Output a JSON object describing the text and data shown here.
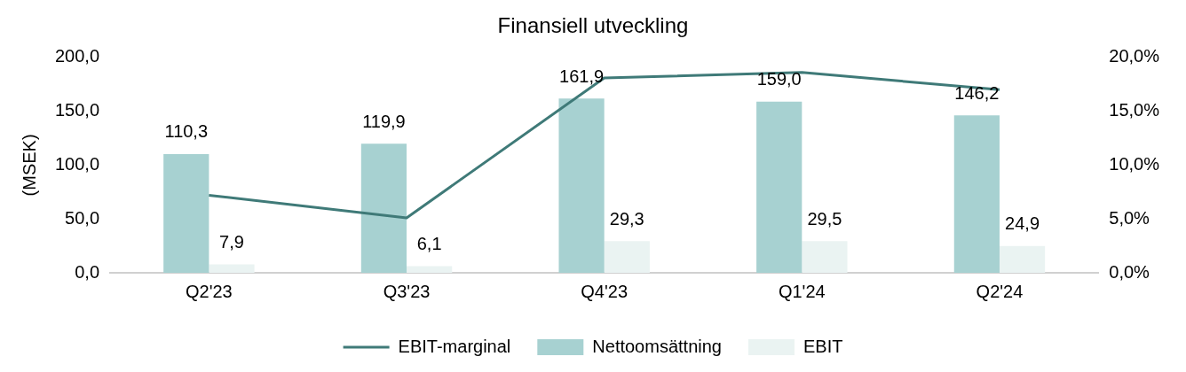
{
  "chart_data": {
    "type": "bar",
    "title": "Finansiell utveckling",
    "ylabel": "(MSEK)",
    "categories": [
      "Q2'23",
      "Q3'23",
      "Q4'23",
      "Q1'24",
      "Q2'24"
    ],
    "series": [
      {
        "name": "Nettoomsättning",
        "color": "#a7d1d1",
        "values": [
          110.3,
          119.9,
          161.9,
          159.0,
          146.2
        ],
        "value_labels": [
          "110,3",
          "119,9",
          "161,9",
          "159,0",
          "146,2"
        ]
      },
      {
        "name": "EBIT",
        "color": "#eaf3f2",
        "values": [
          7.9,
          6.1,
          29.3,
          29.5,
          24.9
        ],
        "value_labels": [
          "7,9",
          "6,1",
          "29,3",
          "29,5",
          "24,9"
        ]
      },
      {
        "name": "EBIT-marginal",
        "type": "line",
        "axis": "y2",
        "color": "#3f7a78",
        "marker": "none",
        "values": [
          7.2,
          5.1,
          18.1,
          18.6,
          17.0
        ]
      }
    ],
    "ylim": [
      0,
      200
    ],
    "yticks": [
      {
        "value": 0,
        "label": "0,0"
      },
      {
        "value": 50,
        "label": "50,0"
      },
      {
        "value": 100,
        "label": "100,0"
      },
      {
        "value": 150,
        "label": "150,0"
      },
      {
        "value": 200,
        "label": "200,0"
      }
    ],
    "y2lim": [
      0,
      20
    ],
    "y2ticks": [
      {
        "value": 0,
        "label": "0,0%"
      },
      {
        "value": 5,
        "label": "5,0%"
      },
      {
        "value": 10,
        "label": "10,0%"
      },
      {
        "value": 15,
        "label": "15,0%"
      },
      {
        "value": 20,
        "label": "20,0%"
      }
    ],
    "legend": "bottom"
  }
}
